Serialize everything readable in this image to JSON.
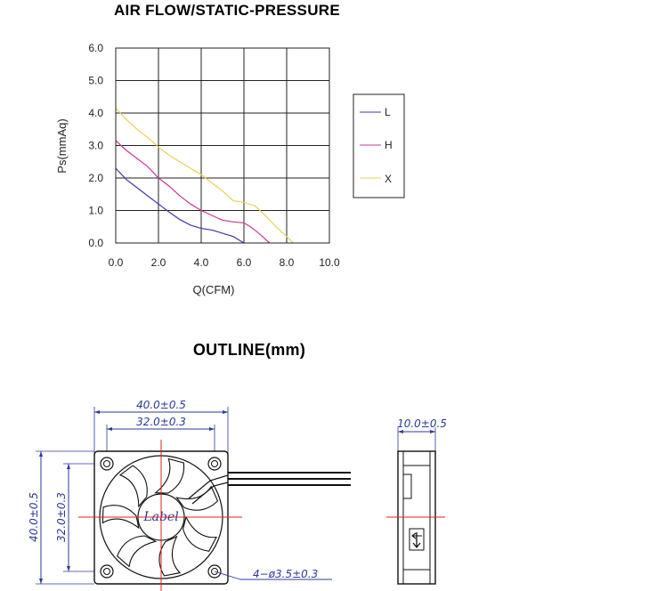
{
  "chart_data": {
    "type": "line",
    "title": "AIR FLOW/STATIC-PRESSURE",
    "xlabel": "Q(CFM)",
    "ylabel": "Ps(mmAq)",
    "xlim": [
      0,
      10
    ],
    "ylim": [
      0,
      6
    ],
    "x_ticks": [
      "0.0",
      "2.0",
      "4.0",
      "6.0",
      "8.0",
      "10.0"
    ],
    "y_ticks": [
      "0.0",
      "1.0",
      "2.0",
      "3.0",
      "4.0",
      "5.0",
      "6.0"
    ],
    "grid": true,
    "legend_position": "right",
    "series": [
      {
        "name": "L",
        "color": "#3a3aa8",
        "x": [
          0.0,
          0.5,
          1.0,
          1.5,
          2.0,
          2.5,
          3.0,
          3.5,
          4.0,
          4.5,
          5.0,
          5.5,
          5.8,
          6.0
        ],
        "y": [
          2.3,
          1.95,
          1.7,
          1.45,
          1.2,
          0.95,
          0.72,
          0.55,
          0.45,
          0.4,
          0.3,
          0.2,
          0.08,
          0.0
        ]
      },
      {
        "name": "H",
        "color": "#c43a98",
        "x": [
          0.0,
          0.5,
          1.0,
          1.5,
          2.0,
          2.5,
          3.0,
          3.5,
          4.0,
          4.5,
          5.0,
          5.5,
          6.0,
          6.3,
          6.6,
          6.9,
          7.2
        ],
        "y": [
          3.15,
          2.85,
          2.6,
          2.35,
          2.0,
          1.75,
          1.45,
          1.2,
          1.0,
          0.85,
          0.7,
          0.65,
          0.62,
          0.5,
          0.35,
          0.18,
          0.0
        ]
      },
      {
        "name": "X",
        "color": "#e8d058",
        "x": [
          0.0,
          0.5,
          1.0,
          1.5,
          2.0,
          2.5,
          3.0,
          3.5,
          4.0,
          4.5,
          5.0,
          5.5,
          6.0,
          6.5,
          7.0,
          7.5,
          8.0,
          8.3
        ],
        "y": [
          4.15,
          3.8,
          3.5,
          3.25,
          2.95,
          2.7,
          2.5,
          2.3,
          2.1,
          1.85,
          1.6,
          1.3,
          1.25,
          1.15,
          0.85,
          0.5,
          0.2,
          0.0
        ]
      }
    ]
  },
  "outline": {
    "title": "OUTLINE(mm)",
    "front": {
      "width_dim": "40.0±0.5",
      "hole_pitch_dim": "32.0±0.3",
      "height_dim": "40.0±0.5",
      "hole_pitch_vertical_dim": "32.0±0.3",
      "hole_dim": "4−ø3.5±0.3",
      "label": "Label"
    },
    "side": {
      "depth_dim": "10.0±0.5"
    }
  },
  "colors": {
    "axis": "#222222",
    "grid": "#222222",
    "dimension": "#2b3a9a",
    "centerline": "#e02020",
    "outline_stroke": "#111111"
  }
}
